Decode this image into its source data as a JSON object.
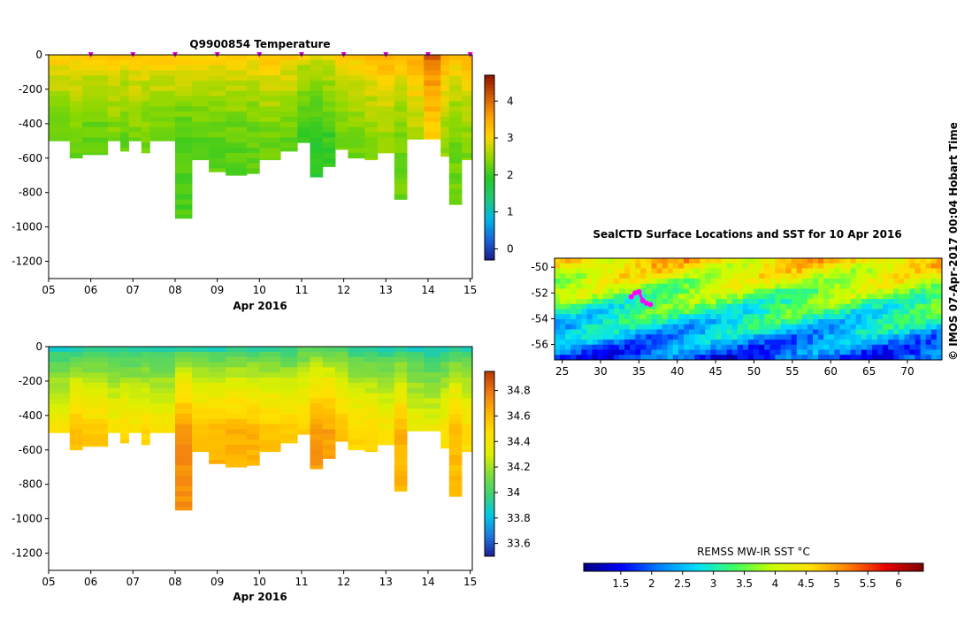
{
  "colormaps": {
    "jet": [
      "#00007f",
      "#0000ff",
      "#0080ff",
      "#00e0ff",
      "#3cff60",
      "#c8ff00",
      "#ffe000",
      "#ff8000",
      "#e80000",
      "#800000"
    ],
    "temp": [
      "#1a1a8c",
      "#1a64d8",
      "#00b4e6",
      "#1ec878",
      "#28c828",
      "#90d800",
      "#ffd400",
      "#ffa000",
      "#d25a00",
      "#8c1400"
    ],
    "sal": [
      "#1e1e96",
      "#1e78dc",
      "#00c8e6",
      "#3cd278",
      "#82dc3c",
      "#dcf000",
      "#ffe000",
      "#ffb400",
      "#f07814",
      "#b43c00"
    ],
    "land": "#8c8c8c"
  },
  "chart_data": [
    {
      "id": "temperature",
      "type": "heatmap",
      "title": "Q9900854  Temperature",
      "xlabel": "Apr 2016",
      "ylabel": "",
      "x_ticks": [
        "05",
        "06",
        "07",
        "08",
        "09",
        "10",
        "11",
        "12",
        "13",
        "14",
        "15"
      ],
      "xlim": [
        5,
        15.05
      ],
      "y_ticks": [
        "0",
        "-200",
        "-400",
        "-600",
        "-800",
        "-1000",
        "-1200"
      ],
      "ylim": [
        -1300,
        0
      ],
      "colorbar": {
        "ticks": [
          "0",
          "1",
          "2",
          "3",
          "4"
        ],
        "range": [
          -0.3,
          4.7
        ],
        "colormap": "temp"
      },
      "marker_color": "#d000d0",
      "profile_markers": [
        6.0,
        7.0,
        8.0,
        9.0,
        10.0,
        11.0,
        12.0,
        13.0,
        14.0,
        15.0
      ],
      "profiles": [
        {
          "start": 5.0,
          "end": 5.5,
          "max_depth": -500,
          "surface": 3.3,
          "deep": 2.2
        },
        {
          "start": 5.5,
          "end": 5.8,
          "max_depth": -600,
          "surface": 3.3,
          "deep": 2.3
        },
        {
          "start": 5.8,
          "end": 6.4,
          "max_depth": -580,
          "surface": 3.2,
          "deep": 2.2
        },
        {
          "start": 6.4,
          "end": 6.7,
          "max_depth": -500,
          "surface": 3.3,
          "deep": 2.3
        },
        {
          "start": 6.7,
          "end": 6.9,
          "max_depth": -560,
          "surface": 3.2,
          "deep": 2.2
        },
        {
          "start": 6.9,
          "end": 7.2,
          "max_depth": -500,
          "surface": 3.3,
          "deep": 2.3
        },
        {
          "start": 7.2,
          "end": 7.4,
          "max_depth": -570,
          "surface": 3.2,
          "deep": 2.3
        },
        {
          "start": 7.4,
          "end": 8.0,
          "max_depth": -500,
          "surface": 3.3,
          "deep": 2.2
        },
        {
          "start": 8.0,
          "end": 8.4,
          "max_depth": -950,
          "surface": 3.3,
          "deep": 2.1
        },
        {
          "start": 8.4,
          "end": 8.8,
          "max_depth": -610,
          "surface": 3.2,
          "deep": 2.2
        },
        {
          "start": 8.8,
          "end": 9.2,
          "max_depth": -680,
          "surface": 3.3,
          "deep": 2.2
        },
        {
          "start": 9.2,
          "end": 9.7,
          "max_depth": -700,
          "surface": 3.2,
          "deep": 2.2
        },
        {
          "start": 9.7,
          "end": 10.0,
          "max_depth": -690,
          "surface": 3.2,
          "deep": 2.2
        },
        {
          "start": 10.0,
          "end": 10.5,
          "max_depth": -610,
          "surface": 3.3,
          "deep": 2.3
        },
        {
          "start": 10.5,
          "end": 10.9,
          "max_depth": -560,
          "surface": 3.3,
          "deep": 2.2
        },
        {
          "start": 10.9,
          "end": 11.2,
          "max_depth": -510,
          "surface": 3.0,
          "deep": 2.0
        },
        {
          "start": 11.2,
          "end": 11.5,
          "max_depth": -710,
          "surface": 3.0,
          "deep": 1.9
        },
        {
          "start": 11.5,
          "end": 11.8,
          "max_depth": -650,
          "surface": 3.1,
          "deep": 2.0
        },
        {
          "start": 11.8,
          "end": 12.1,
          "max_depth": -550,
          "surface": 3.2,
          "deep": 2.3
        },
        {
          "start": 12.1,
          "end": 12.5,
          "max_depth": -600,
          "surface": 3.3,
          "deep": 2.3
        },
        {
          "start": 12.5,
          "end": 12.8,
          "max_depth": -610,
          "surface": 3.4,
          "deep": 2.4
        },
        {
          "start": 12.8,
          "end": 13.2,
          "max_depth": -570,
          "surface": 3.6,
          "deep": 2.5
        },
        {
          "start": 13.2,
          "end": 13.5,
          "max_depth": -840,
          "surface": 3.5,
          "deep": 2.3
        },
        {
          "start": 13.5,
          "end": 13.9,
          "max_depth": -490,
          "surface": 3.6,
          "deep": 2.6
        },
        {
          "start": 13.9,
          "end": 14.3,
          "max_depth": -490,
          "surface": 4.2,
          "deep": 3.0
        },
        {
          "start": 14.3,
          "end": 14.5,
          "max_depth": -590,
          "surface": 3.6,
          "deep": 2.5
        },
        {
          "start": 14.5,
          "end": 14.8,
          "max_depth": -870,
          "surface": 3.4,
          "deep": 2.3
        },
        {
          "start": 14.8,
          "end": 15.05,
          "max_depth": -610,
          "surface": 3.6,
          "deep": 2.4
        }
      ]
    },
    {
      "id": "salinity",
      "type": "heatmap",
      "title": "",
      "xlabel": "Apr 2016",
      "ylabel": "",
      "x_ticks": [
        "05",
        "06",
        "07",
        "08",
        "09",
        "10",
        "11",
        "12",
        "13",
        "14",
        "15"
      ],
      "xlim": [
        5,
        15.05
      ],
      "y_ticks": [
        "0",
        "-200",
        "-400",
        "-600",
        "-800",
        "-1000",
        "-1200"
      ],
      "ylim": [
        -1300,
        0
      ],
      "colorbar": {
        "ticks": [
          "33.6",
          "33.8",
          "34",
          "34.2",
          "34.4",
          "34.6",
          "34.8"
        ],
        "range": [
          33.5,
          34.95
        ],
        "colormap": "sal"
      },
      "profiles": [
        {
          "start": 5.0,
          "end": 5.5,
          "max_depth": -500,
          "surface": 33.83,
          "deep": 34.45
        },
        {
          "start": 5.5,
          "end": 5.8,
          "max_depth": -600,
          "surface": 33.82,
          "deep": 34.6
        },
        {
          "start": 5.8,
          "end": 6.4,
          "max_depth": -580,
          "surface": 33.83,
          "deep": 34.55
        },
        {
          "start": 6.4,
          "end": 6.7,
          "max_depth": -500,
          "surface": 33.84,
          "deep": 34.45
        },
        {
          "start": 6.7,
          "end": 6.9,
          "max_depth": -560,
          "surface": 33.83,
          "deep": 34.5
        },
        {
          "start": 6.9,
          "end": 7.2,
          "max_depth": -500,
          "surface": 33.84,
          "deep": 34.45
        },
        {
          "start": 7.2,
          "end": 7.4,
          "max_depth": -570,
          "surface": 33.83,
          "deep": 34.5
        },
        {
          "start": 7.4,
          "end": 8.0,
          "max_depth": -500,
          "surface": 33.84,
          "deep": 34.45
        },
        {
          "start": 8.0,
          "end": 8.4,
          "max_depth": -950,
          "surface": 33.85,
          "deep": 34.72
        },
        {
          "start": 8.4,
          "end": 8.8,
          "max_depth": -610,
          "surface": 33.84,
          "deep": 34.6
        },
        {
          "start": 8.8,
          "end": 9.2,
          "max_depth": -680,
          "surface": 33.83,
          "deep": 34.62
        },
        {
          "start": 9.2,
          "end": 9.7,
          "max_depth": -700,
          "surface": 33.84,
          "deep": 34.63
        },
        {
          "start": 9.7,
          "end": 10.0,
          "max_depth": -690,
          "surface": 33.84,
          "deep": 34.62
        },
        {
          "start": 10.0,
          "end": 10.5,
          "max_depth": -610,
          "surface": 33.85,
          "deep": 34.58
        },
        {
          "start": 10.5,
          "end": 10.9,
          "max_depth": -560,
          "surface": 33.86,
          "deep": 34.55
        },
        {
          "start": 10.9,
          "end": 11.2,
          "max_depth": -510,
          "surface": 33.95,
          "deep": 34.55
        },
        {
          "start": 11.2,
          "end": 11.5,
          "max_depth": -710,
          "surface": 33.97,
          "deep": 34.7
        },
        {
          "start": 11.5,
          "end": 11.8,
          "max_depth": -650,
          "surface": 33.95,
          "deep": 34.68
        },
        {
          "start": 11.8,
          "end": 12.1,
          "max_depth": -550,
          "surface": 33.92,
          "deep": 34.6
        },
        {
          "start": 12.1,
          "end": 12.5,
          "max_depth": -600,
          "surface": 33.84,
          "deep": 34.5
        },
        {
          "start": 12.5,
          "end": 12.8,
          "max_depth": -610,
          "surface": 33.83,
          "deep": 34.5
        },
        {
          "start": 12.8,
          "end": 13.2,
          "max_depth": -570,
          "surface": 33.84,
          "deep": 34.45
        },
        {
          "start": 13.2,
          "end": 13.5,
          "max_depth": -840,
          "surface": 33.85,
          "deep": 34.62
        },
        {
          "start": 13.5,
          "end": 13.9,
          "max_depth": -490,
          "surface": 33.84,
          "deep": 34.4
        },
        {
          "start": 13.9,
          "end": 14.3,
          "max_depth": -490,
          "surface": 33.8,
          "deep": 34.38
        },
        {
          "start": 14.3,
          "end": 14.5,
          "max_depth": -590,
          "surface": 33.82,
          "deep": 34.45
        },
        {
          "start": 14.5,
          "end": 14.8,
          "max_depth": -870,
          "surface": 33.84,
          "deep": 34.6
        },
        {
          "start": 14.8,
          "end": 15.05,
          "max_depth": -610,
          "surface": 33.85,
          "deep": 34.48
        }
      ]
    },
    {
      "id": "sst_map",
      "type": "heatmap",
      "title": "SealCTD Surface Locations and SST for 10 Apr 2016",
      "x_ticks": [
        "25",
        "30",
        "35",
        "40",
        "45",
        "50",
        "55",
        "60",
        "65",
        "70"
      ],
      "x_tick_values": [
        25,
        30,
        35,
        40,
        45,
        50,
        55,
        60,
        65,
        70
      ],
      "xlim": [
        24,
        74.5
      ],
      "y_ticks": [
        "-50",
        "-52",
        "-54",
        "-56"
      ],
      "y_tick_values": [
        -50,
        -52,
        -54,
        -56
      ],
      "ylim": [
        -57.2,
        -49.3
      ],
      "sst_north": 4.6,
      "sst_south": 1.8,
      "float_track": [
        [
          34.0,
          -52.3
        ],
        [
          34.5,
          -52.0
        ],
        [
          35.0,
          -51.9
        ],
        [
          35.5,
          -52.6
        ],
        [
          36.0,
          -52.8
        ],
        [
          36.5,
          -52.9
        ]
      ],
      "track_color": "#ff00ff",
      "colorbar": {
        "label": "REMSS MW-IR SST °C",
        "ticks": [
          "1.5",
          "2",
          "2.5",
          "3",
          "3.5",
          "4",
          "4.5",
          "5",
          "5.5",
          "6"
        ],
        "tick_values": [
          1.5,
          2,
          2.5,
          3,
          3.5,
          4,
          4.5,
          5,
          5.5,
          6
        ],
        "range": [
          0.9,
          6.4
        ],
        "colormap": "jet"
      }
    }
  ],
  "credit": "© IMOS 07-Apr-2017 00:04 Hobart Time"
}
